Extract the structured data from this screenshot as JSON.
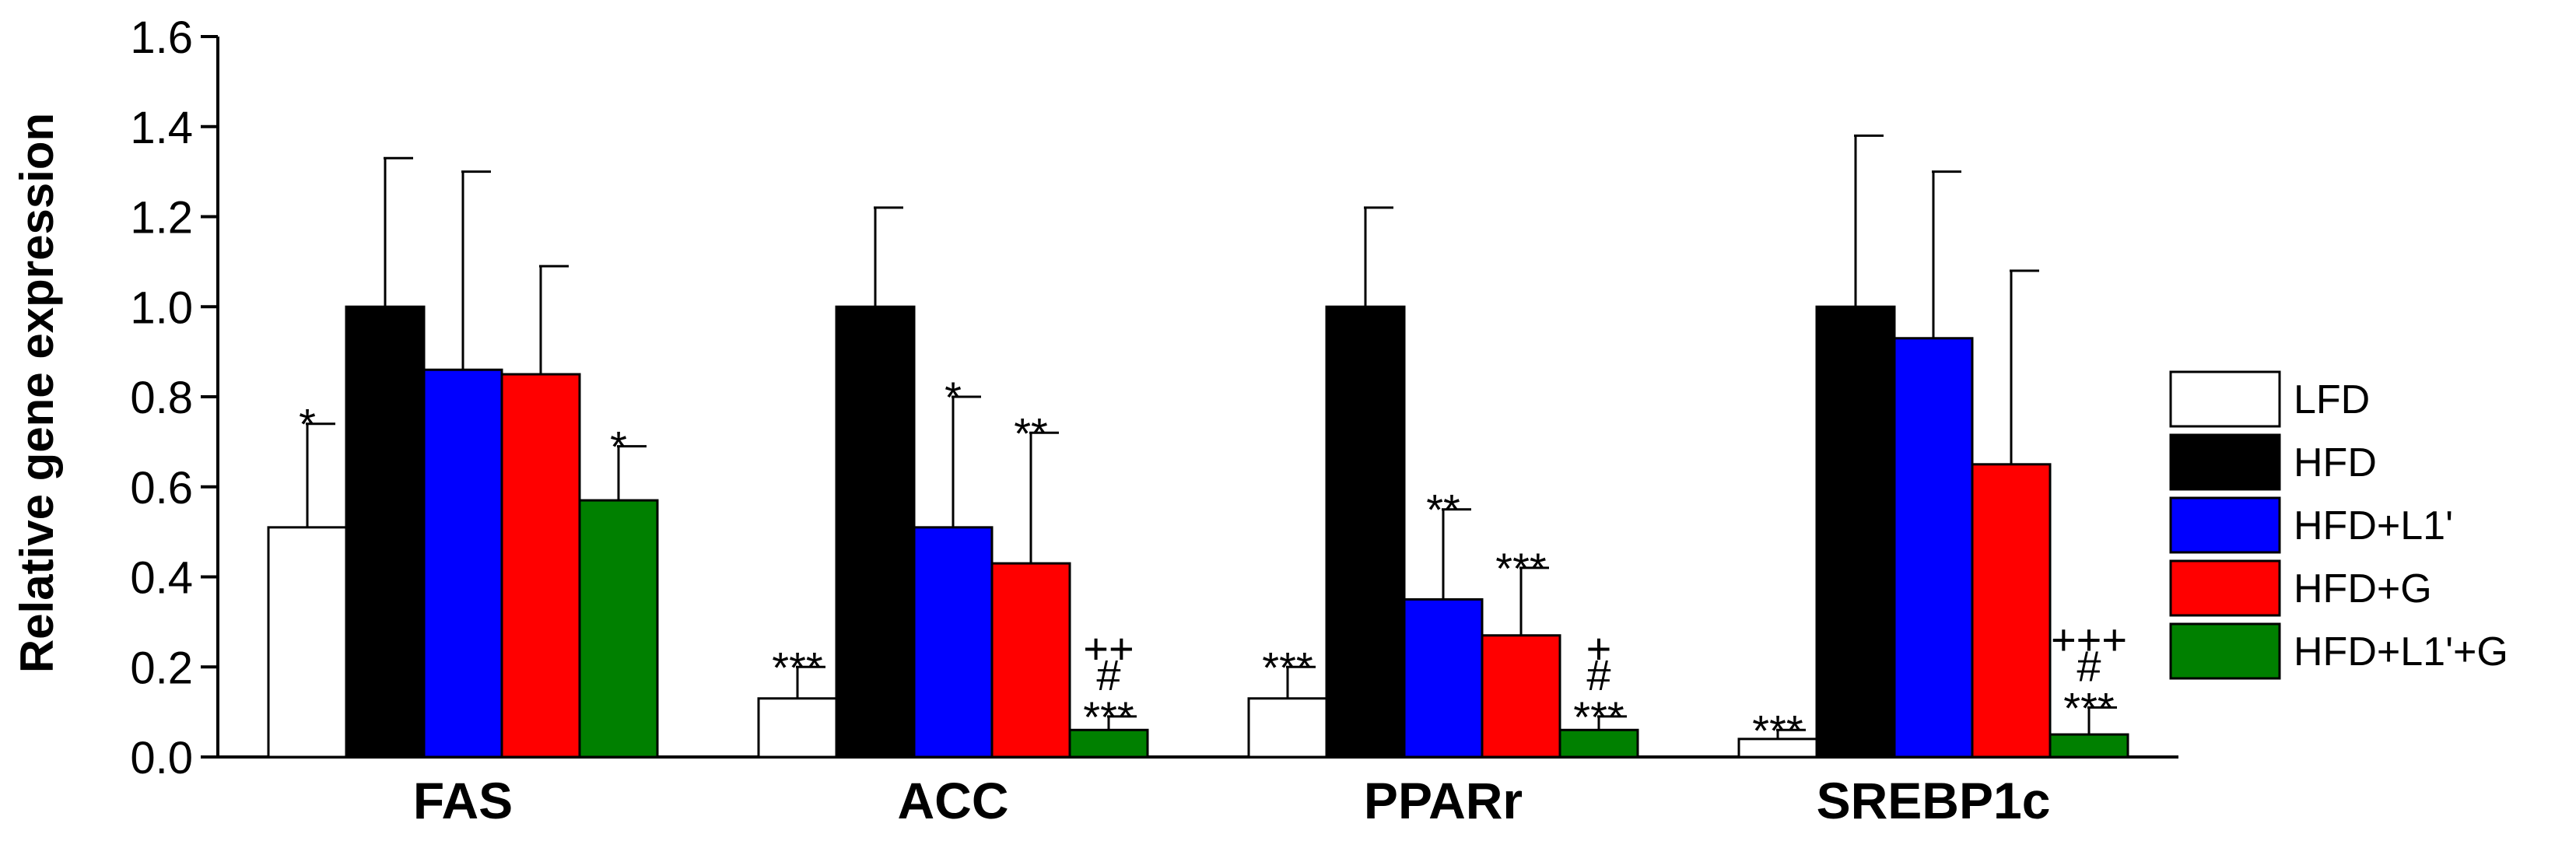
{
  "chart_data": {
    "type": "bar",
    "title": "",
    "xlabel": "",
    "ylabel": "Relative gene expression",
    "ylim": [
      0,
      1.6
    ],
    "yticks": [
      "0.0",
      "0.2",
      "0.4",
      "0.6",
      "0.8",
      "1.0",
      "1.2",
      "1.4",
      "1.6"
    ],
    "grid": false,
    "legend_position": "right",
    "categories": [
      "FAS",
      "ACC",
      "PPARr",
      "SREBP1c"
    ],
    "series": [
      {
        "name": "LFD",
        "color": "#ffffff",
        "values": [
          0.51,
          0.13,
          0.13,
          0.04
        ],
        "errors": [
          0.23,
          0.07,
          0.07,
          0.02
        ],
        "annotations": [
          [
            "*"
          ],
          [
            "***"
          ],
          [
            "***"
          ],
          [
            "***"
          ]
        ]
      },
      {
        "name": "HFD",
        "color": "#000000",
        "values": [
          1.0,
          1.0,
          1.0,
          1.0
        ],
        "errors": [
          0.33,
          0.22,
          0.22,
          0.38
        ],
        "annotations": [
          [],
          [],
          [],
          []
        ]
      },
      {
        "name": "HFD+L1'",
        "color": "#0000ff",
        "values": [
          0.86,
          0.51,
          0.35,
          0.93
        ],
        "errors": [
          0.44,
          0.29,
          0.2,
          0.37
        ],
        "annotations": [
          [],
          [
            "*"
          ],
          [
            "**"
          ],
          []
        ]
      },
      {
        "name": "HFD+G",
        "color": "#ff0000",
        "values": [
          0.85,
          0.43,
          0.27,
          0.65
        ],
        "errors": [
          0.24,
          0.29,
          0.15,
          0.43
        ],
        "annotations": [
          [],
          [
            "**"
          ],
          [
            "***"
          ],
          []
        ]
      },
      {
        "name": "HFD+L1'+G",
        "color": "#008000",
        "values": [
          0.57,
          0.06,
          0.06,
          0.05
        ],
        "errors": [
          0.12,
          0.03,
          0.03,
          0.06
        ],
        "annotations": [
          [
            "*"
          ],
          [
            "++",
            "#",
            "***"
          ],
          [
            "+",
            "#",
            "***"
          ],
          [
            "+++",
            "#",
            "***"
          ]
        ]
      }
    ]
  }
}
